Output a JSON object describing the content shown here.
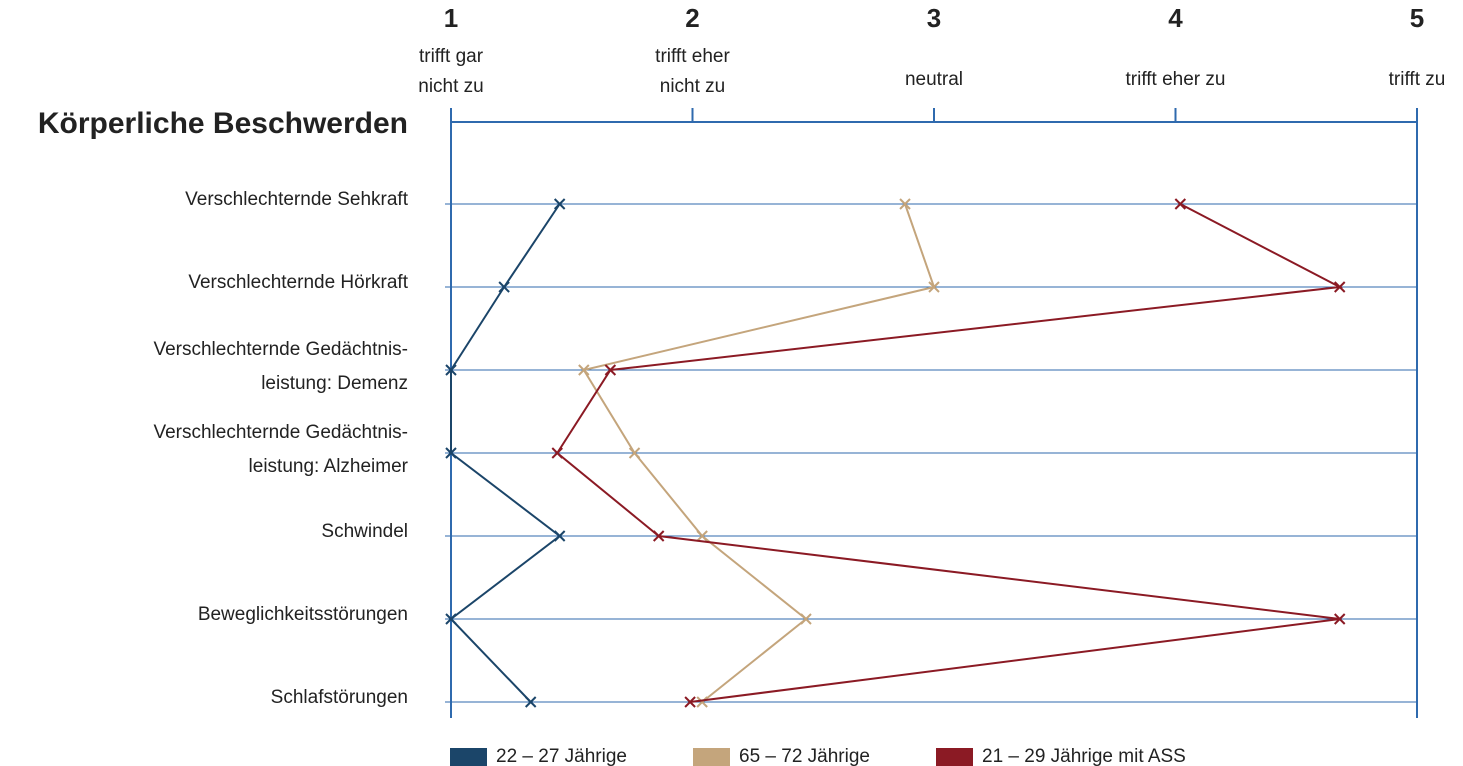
{
  "chart_data": {
    "type": "profile",
    "title": "Körperliche Beschwerden",
    "xlim": [
      1,
      5
    ],
    "xticks": [
      1,
      2,
      3,
      4,
      5
    ],
    "tick_descriptions": [
      [
        "trifft gar",
        "nicht zu"
      ],
      [
        "trifft eher",
        "nicht zu"
      ],
      [
        "neutral"
      ],
      [
        "trifft eher zu"
      ],
      [
        "trifft zu"
      ]
    ],
    "categories": [
      [
        "Verschlechternde Sehkraft"
      ],
      [
        "Verschlechternde Hörkraft"
      ],
      [
        "Verschlechternde Gedächtnis-",
        "leistung: Demenz"
      ],
      [
        "Verschlechternde Gedächtnis-",
        "leistung: Alzheimer"
      ],
      [
        "Schwindel"
      ],
      [
        "Beweglichkeitsstörungen"
      ],
      [
        "Schlafstörungen"
      ]
    ],
    "series": [
      {
        "name": "22 – 27 Jährige",
        "color": "#1b4569",
        "values": [
          1.45,
          1.22,
          1.0,
          1.0,
          1.45,
          1.0,
          1.33
        ]
      },
      {
        "name": "65 – 72 Jährige",
        "color": "#c4a57c",
        "values": [
          2.88,
          3.0,
          1.55,
          1.76,
          2.04,
          2.47,
          2.04
        ]
      },
      {
        "name": "21 – 29 Jährige mit ASS",
        "color": "#8b1a24",
        "values": [
          4.02,
          4.68,
          1.66,
          1.44,
          1.86,
          4.68,
          1.99
        ]
      }
    ],
    "grid": true
  }
}
